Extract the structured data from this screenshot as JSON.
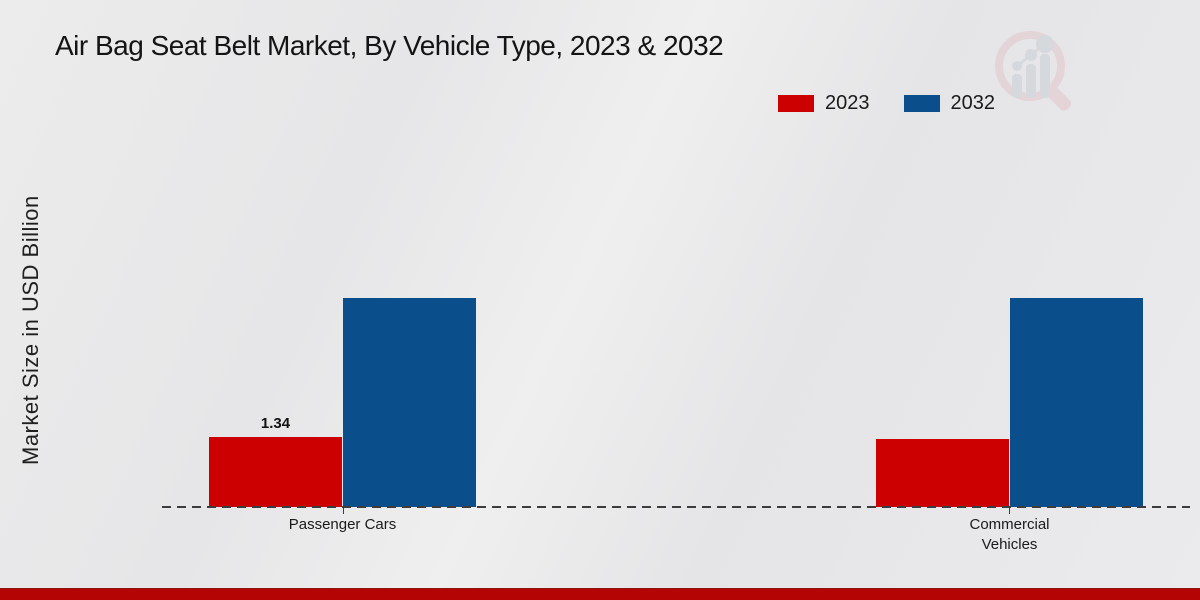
{
  "page": {
    "footer_strip_color": "#b40404",
    "background_color": "#e9e9eb"
  },
  "chart_data": {
    "type": "bar",
    "title": "Air Bag Seat Belt Market, By Vehicle Type, 2023 & 2032",
    "xlabel": "",
    "ylabel": "Market Size in USD Billion",
    "categories": [
      "Passenger Cars",
      "Commercial Vehicles"
    ],
    "series": [
      {
        "name": "2023",
        "color": "#cc0000",
        "values": [
          1.34,
          1.3
        ]
      },
      {
        "name": "2032",
        "color": "#0a4f8b",
        "values": [
          4.0,
          4.0
        ]
      }
    ],
    "shown_data_labels": [
      {
        "series": "2023",
        "category": "Passenger Cars",
        "text": "1.34"
      }
    ],
    "ylim": [
      0,
      4.6
    ],
    "grid": false,
    "legend_position": "top-right",
    "x_axis_style": "dashed",
    "y_axis_ticks_visible": false
  },
  "icons": {
    "watermark": "magnifier-bar-chart-logo"
  }
}
